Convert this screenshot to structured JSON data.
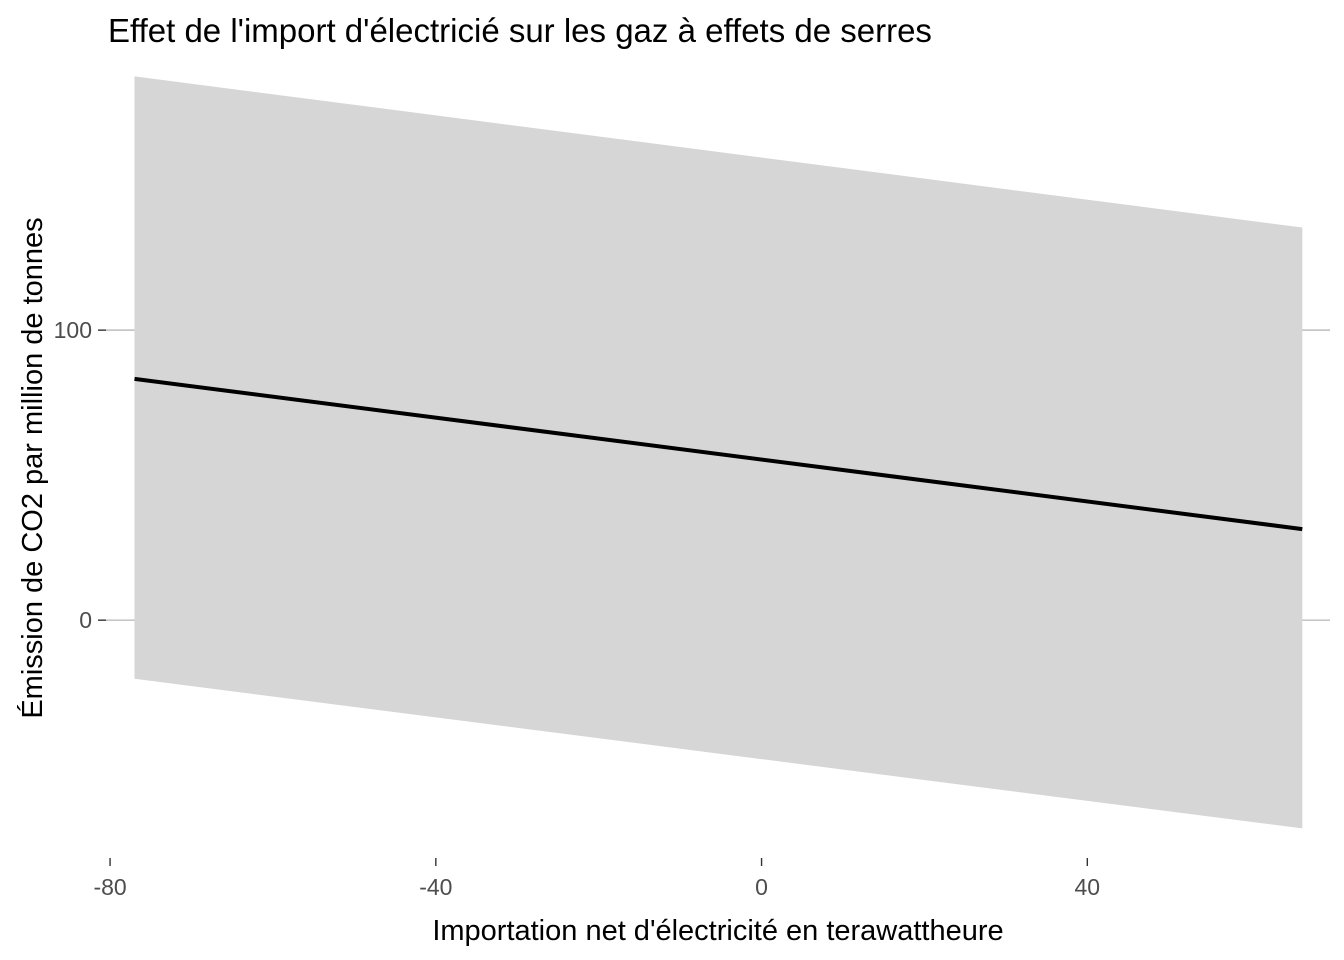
{
  "chart_data": {
    "type": "line",
    "title": "Effet de l'import d'électricié sur les gaz à effets de serres",
    "xlabel": "Importation net d'électricité en terawattheure",
    "ylabel": "Émission de CO2 par million de tonnes",
    "x_ticks": [
      {
        "value": -80,
        "label": "-80"
      },
      {
        "value": -40,
        "label": "-40"
      },
      {
        "value": 0,
        "label": "0"
      },
      {
        "value": 40,
        "label": "40"
      }
    ],
    "y_ticks": [
      {
        "value": 0,
        "label": "0"
      },
      {
        "value": 100,
        "label": "100"
      }
    ],
    "xlim": [
      -80.5,
      69.8
    ],
    "ylim": [
      -82,
      189
    ],
    "grid": {
      "horizontal_major": true,
      "vertical": false
    },
    "series": [
      {
        "x": [
          -77,
          66.4
        ],
        "y": [
          83.2,
          31.4
        ],
        "ribbon_lower": [
          -20.2,
          -71.8
        ],
        "ribbon_upper": [
          187.5,
          135.4
        ],
        "line_color": "#000000",
        "ribbon_color": "#d6d6d6"
      }
    ],
    "legend": "none"
  }
}
